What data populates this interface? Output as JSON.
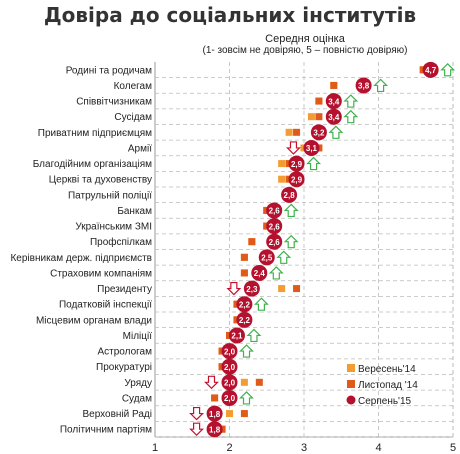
{
  "chart_data": {
    "type": "scatter",
    "title": "Довіра до соціальних інститутів",
    "subtitle": "Середня оцінка",
    "subtitle_note": "(1- зовсім не довіряю, 5 – повністю довіряю)",
    "xlim": [
      1,
      5
    ],
    "x_ticks": [
      "1",
      "2",
      "3",
      "4",
      "5"
    ],
    "grid": true,
    "legend_position": "bottom-right",
    "colors": {
      "sep14": "#F39C32",
      "nov14": "#E05A1A",
      "aug15": "#B5102D",
      "arrow_up": "#3FB24D",
      "arrow_down": "#C8102E",
      "grid": "#BBBBBB"
    },
    "series": [
      {
        "name": "Вересень'14",
        "marker": "square"
      },
      {
        "name": "Листопад '14",
        "marker": "square"
      },
      {
        "name": "Серпень'15",
        "marker": "circle"
      }
    ],
    "categories": [
      {
        "label": "Родині та родичам",
        "sep14": 4.6,
        "nov14": 4.6,
        "aug15": 4.7,
        "aug15_label": "4,7",
        "change": "up"
      },
      {
        "label": "Колегам",
        "sep14": 3.4,
        "nov14": 3.4,
        "aug15": 3.8,
        "aug15_label": "3,8",
        "change": "up"
      },
      {
        "label": "Співвітчизникам",
        "sep14": 3.2,
        "nov14": 3.2,
        "aug15": 3.4,
        "aug15_label": "3,4",
        "change": "up"
      },
      {
        "label": "Сусідам",
        "sep14": 3.1,
        "nov14": 3.2,
        "aug15": 3.4,
        "aug15_label": "3,4",
        "change": "up"
      },
      {
        "label": "Приватним підприємцям",
        "sep14": 2.8,
        "nov14": 2.9,
        "aug15": 3.2,
        "aug15_label": "3,2",
        "change": "up"
      },
      {
        "label": "Армії",
        "sep14": 3.0,
        "nov14": 3.2,
        "aug15": 3.1,
        "aug15_label": "3,1",
        "change": "down"
      },
      {
        "label": "Благодійним організаціям",
        "sep14": 2.7,
        "nov14": 2.8,
        "aug15": 2.9,
        "aug15_label": "2,9",
        "change": "up"
      },
      {
        "label": "Церкві та  духовенству",
        "sep14": 2.7,
        "nov14": 2.8,
        "aug15": 2.9,
        "aug15_label": "2,9",
        "change": ""
      },
      {
        "label": "Патрульній поліції",
        "sep14": null,
        "nov14": null,
        "aug15": 2.8,
        "aug15_label": "2,8",
        "change": ""
      },
      {
        "label": "Банкам",
        "sep14": 2.5,
        "nov14": 2.5,
        "aug15": 2.6,
        "aug15_label": "2,6",
        "change": "up"
      },
      {
        "label": "Українським ЗМІ",
        "sep14": 2.5,
        "nov14": 2.5,
        "aug15": 2.6,
        "aug15_label": "2,6",
        "change": ""
      },
      {
        "label": "Профспілкам",
        "sep14": 2.3,
        "nov14": 2.3,
        "aug15": 2.6,
        "aug15_label": "2,6",
        "change": "up"
      },
      {
        "label": "Керівникам держ. підприємств",
        "sep14": 2.2,
        "nov14": 2.2,
        "aug15": 2.5,
        "aug15_label": "2,5",
        "change": "up"
      },
      {
        "label": "Страховим компаніям",
        "sep14": 2.2,
        "nov14": 2.2,
        "aug15": 2.4,
        "aug15_label": "2,4",
        "change": "up"
      },
      {
        "label": "Президенту",
        "sep14": 2.7,
        "nov14": 2.9,
        "aug15": 2.3,
        "aug15_label": "2,3",
        "change": "down"
      },
      {
        "label": "Податковій інспекції",
        "sep14": 2.1,
        "nov14": 2.1,
        "aug15": 2.2,
        "aug15_label": "2,2",
        "change": "up"
      },
      {
        "label": "Місцевим органам влади",
        "sep14": 2.1,
        "nov14": 2.1,
        "aug15": 2.2,
        "aug15_label": "2,2",
        "change": ""
      },
      {
        "label": "Міліції",
        "sep14": 2.0,
        "nov14": 2.0,
        "aug15": 2.1,
        "aug15_label": "2,1",
        "change": "up"
      },
      {
        "label": "Астрологам",
        "sep14": 1.9,
        "nov14": 1.9,
        "aug15": 2.0,
        "aug15_label": "2,0",
        "change": "up"
      },
      {
        "label": "Прокуратурі",
        "sep14": 1.9,
        "nov14": 1.9,
        "aug15": 2.0,
        "aug15_label": "2,0",
        "change": ""
      },
      {
        "label": "Уряду",
        "sep14": 2.2,
        "nov14": 2.4,
        "aug15": 2.0,
        "aug15_label": "2,0",
        "change": "down"
      },
      {
        "label": "Судам",
        "sep14": 1.8,
        "nov14": 1.8,
        "aug15": 2.0,
        "aug15_label": "2,0",
        "change": "up"
      },
      {
        "label": "Верховній Раді",
        "sep14": 2.0,
        "nov14": 2.2,
        "aug15": 1.8,
        "aug15_label": "1,8",
        "change": "down"
      },
      {
        "label": "Політичним партіям",
        "sep14": 1.9,
        "nov14": 1.9,
        "aug15": 1.8,
        "aug15_label": "1,8",
        "change": "down"
      }
    ]
  }
}
